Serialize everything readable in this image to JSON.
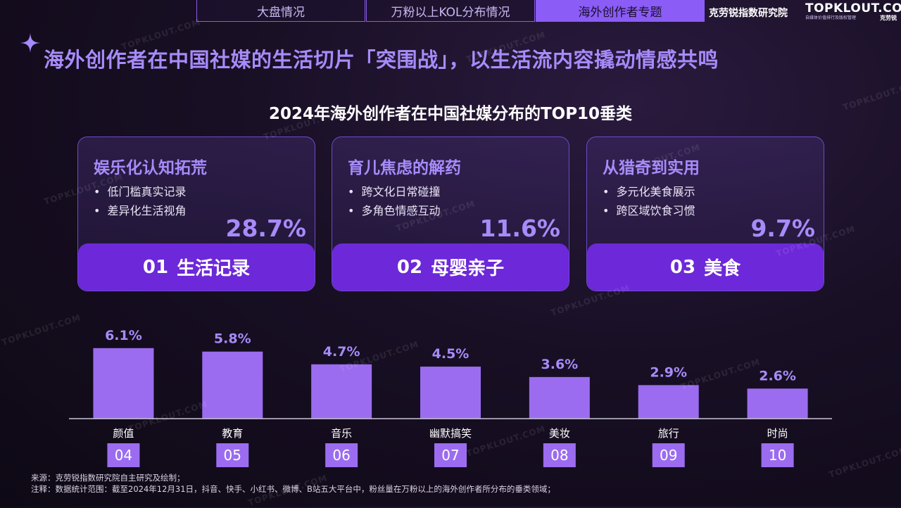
{
  "nav": {
    "tabs": [
      {
        "label": "大盘情况",
        "active": false
      },
      {
        "label": "万粉以上KOL分布情况",
        "active": false
      },
      {
        "label": "海外创作者专题",
        "active": true
      }
    ],
    "brand_cn": "克劳锐指数研究院",
    "brand_logo": "TOPKLOUT.COM",
    "brand_logo_tagline": "自媒体价值排行及版权管理",
    "brand_logo_cn": "克劳锐"
  },
  "headline": "海外创作者在中国社媒的生活切片「突围战」，以生活流内容撬动情感共鸣",
  "subtitle": "2024年海外创作者在中国社媒分布的TOP10垂类",
  "cards": [
    {
      "title": "娱乐化认知拓荒",
      "bullets": [
        "低门槛真实记录",
        "差异化生活视角"
      ],
      "pct": "28.7%",
      "rank": "01",
      "category": "生活记录"
    },
    {
      "title": "育儿焦虑的解药",
      "bullets": [
        "跨文化日常碰撞",
        "多角色情感互动"
      ],
      "pct": "11.6%",
      "rank": "02",
      "category": "母婴亲子"
    },
    {
      "title": "从猎奇到实用",
      "bullets": [
        "多元化美食展示",
        "跨区域饮食习惯"
      ],
      "pct": "9.7%",
      "rank": "03",
      "category": "美食"
    }
  ],
  "chart_data": {
    "type": "bar",
    "categories": [
      "颜值",
      "教育",
      "音乐",
      "幽默搞笑",
      "美妆",
      "旅行",
      "时尚"
    ],
    "ranks": [
      "04",
      "05",
      "06",
      "07",
      "08",
      "09",
      "10"
    ],
    "values": [
      6.1,
      5.8,
      4.7,
      4.5,
      3.6,
      2.9,
      2.6
    ],
    "value_labels": [
      "6.1%",
      "5.8%",
      "4.7%",
      "4.5%",
      "3.6%",
      "2.9%",
      "2.6%"
    ],
    "unit": "%",
    "ylim": [
      0,
      7
    ],
    "grid": false,
    "colors": {
      "bar": "#9b6cf0",
      "value_label": "#a78bfa",
      "rank_box": "#9b6cf0",
      "baseline": "#c9c4d6"
    }
  },
  "sources": {
    "source_line": "来源：克劳锐指数研究院自主研究及绘制；",
    "note_line": "注释：数据统计范围：截至2024年12月31日，抖音、快手、小红书、微博、B站五大平台中，粉丝量在万粉以上的海外创作者所分布的垂类领域；"
  },
  "watermark": "TOPKLOUT.COM"
}
